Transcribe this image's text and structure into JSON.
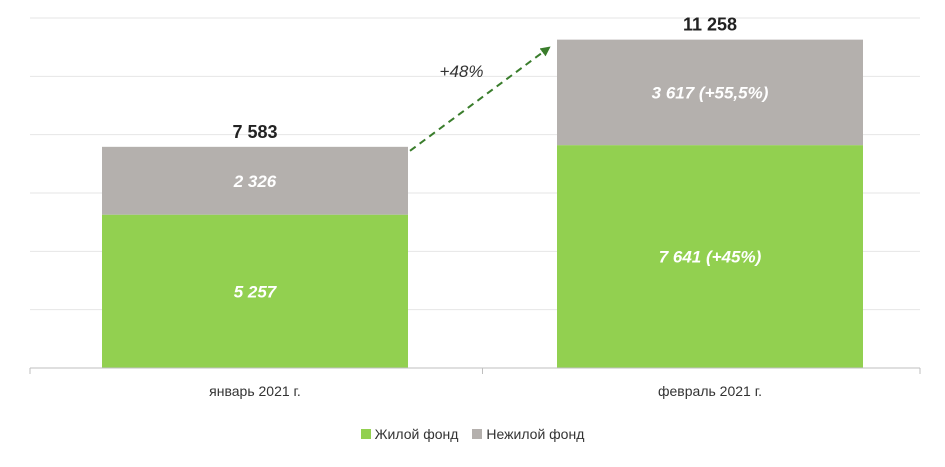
{
  "chart_data": {
    "type": "bar",
    "stacked": true,
    "categories": [
      "январь 2021 г.",
      "февраль 2021 г."
    ],
    "series": [
      {
        "name": "Жилой фонд",
        "color": "#92d050",
        "values": [
          5257,
          7641
        ],
        "labels": [
          "5 257",
          "7 641 (+45%)"
        ]
      },
      {
        "name": "Нежилой фонд",
        "color": "#b4b0ad",
        "values": [
          2326,
          3617
        ],
        "labels": [
          "2 326",
          "3 617 (+55,5%)"
        ]
      }
    ],
    "totals": [
      7583,
      11258
    ],
    "total_labels": [
      "7 583",
      "11 258"
    ],
    "annotation": {
      "text": "+48%",
      "color": "#3a7d2c"
    },
    "ylim": [
      0,
      12000
    ],
    "grid": true,
    "legend_position": "bottom"
  }
}
